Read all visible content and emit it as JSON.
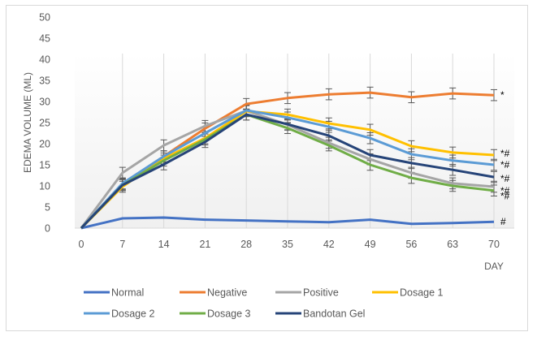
{
  "chart_data": {
    "type": "line",
    "title": "",
    "xlabel": "DAY",
    "ylabel": "EDEMA VOLUME (ML)",
    "ylim": [
      0,
      50
    ],
    "yticks": [
      0,
      5,
      10,
      15,
      20,
      25,
      30,
      35,
      40,
      45,
      50
    ],
    "x": [
      0,
      7,
      14,
      21,
      28,
      35,
      42,
      49,
      56,
      63,
      70
    ],
    "grid": "vertical",
    "legend_position": "bottom",
    "error_bars": true,
    "series": [
      {
        "name": "Normal",
        "color": "#4472C4",
        "annotation": "#",
        "error_bars": false,
        "values": [
          0,
          2.3,
          2.5,
          2.0,
          1.8,
          1.6,
          1.4,
          2.0,
          1.0,
          1.2,
          1.5
        ]
      },
      {
        "name": "Negative",
        "color": "#ED7D31",
        "annotation": "*",
        "error_bars": true,
        "values": [
          0,
          10.4,
          17.0,
          23.6,
          29.4,
          30.8,
          31.7,
          32.1,
          31.0,
          31.9,
          31.5
        ]
      },
      {
        "name": "Positive",
        "color": "#A5A5A5",
        "annotation": "*#",
        "error_bars": true,
        "values": [
          0,
          13.1,
          19.6,
          24.2,
          27.8,
          24.5,
          20.2,
          16.3,
          13.1,
          10.6,
          9.8
        ]
      },
      {
        "name": "Dosage 1",
        "color": "#FFC000",
        "annotation": "*#",
        "error_bars": true,
        "values": [
          0,
          9.8,
          16.5,
          21.3,
          27.7,
          26.9,
          24.8,
          23.3,
          19.4,
          17.9,
          17.3
        ]
      },
      {
        "name": "Dosage 2",
        "color": "#5B9BD5",
        "annotation": "*#",
        "error_bars": true,
        "values": [
          0,
          10.6,
          17.0,
          22.5,
          27.9,
          26.2,
          24.0,
          21.3,
          17.5,
          16.0,
          15.0
        ]
      },
      {
        "name": "Dosage 3",
        "color": "#70AD47",
        "annotation": "*#",
        "error_bars": true,
        "values": [
          0,
          10.2,
          16.0,
          21.0,
          26.9,
          23.7,
          19.6,
          15.0,
          11.9,
          10.0,
          8.9
        ]
      },
      {
        "name": "Bandotan Gel",
        "color": "#264478",
        "annotation": "*#",
        "error_bars": true,
        "values": [
          0,
          10.2,
          15.1,
          20.4,
          26.9,
          24.6,
          21.9,
          17.3,
          15.4,
          13.8,
          12.1
        ]
      }
    ],
    "error_bar_size": 1.3
  }
}
